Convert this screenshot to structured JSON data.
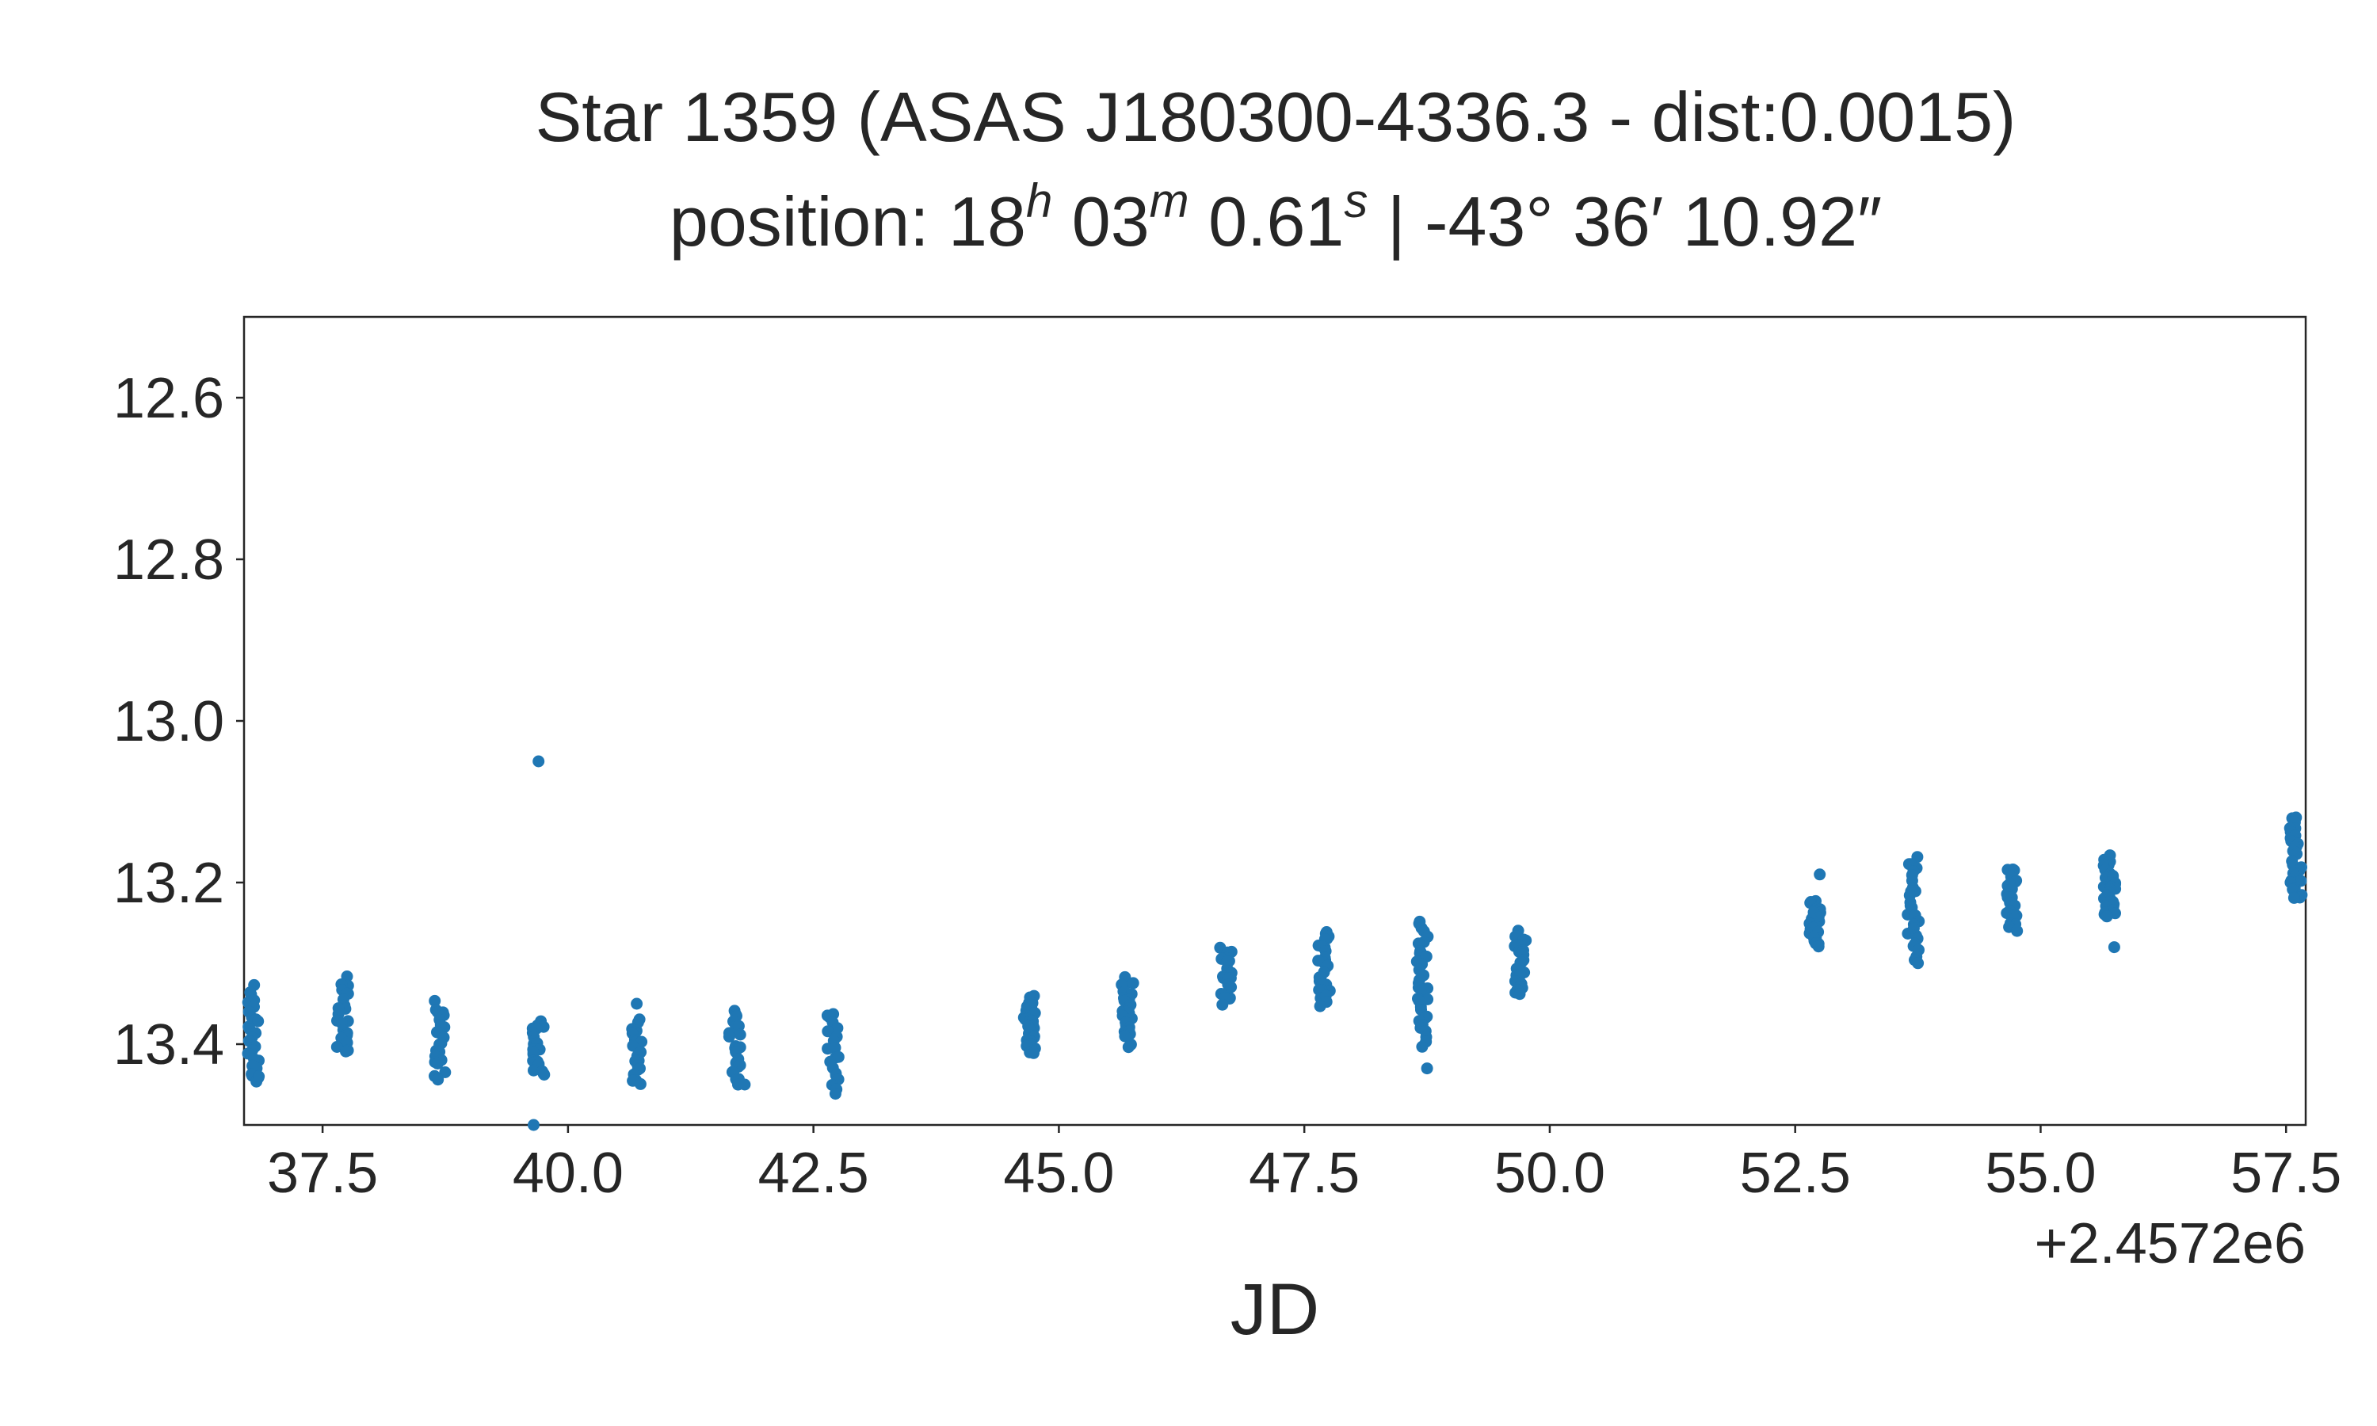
{
  "chart_data": {
    "type": "scatter",
    "title": "Star 1359 (ASAS J180300-4336.3 - dist:0.0015)",
    "subtitle": {
      "prefix": "position: ",
      "ra_h": "18",
      "h_sup": "h",
      "ra_m": " 03",
      "m_sup": "m",
      "ra_s": " 0.61",
      "s_sup": "s",
      "dec": " | -43° 36′ 10.92″"
    },
    "xlabel": "JD",
    "ylabel": "",
    "x_offset_label": "+2.4572e6",
    "xlim": [
      36.7,
      57.7
    ],
    "ylim": [
      12.5,
      13.5
    ],
    "y_inverted": false,
    "grid": false,
    "marker_color": "#1f77b4",
    "x_ticks": [
      37.5,
      40.0,
      42.5,
      45.0,
      47.5,
      50.0,
      52.5,
      55.0,
      57.5
    ],
    "x_tick_labels": [
      "37.5",
      "40.0",
      "42.5",
      "45.0",
      "47.5",
      "50.0",
      "52.5",
      "55.0",
      "57.5"
    ],
    "y_ticks": [
      12.6,
      12.8,
      13.0,
      13.2,
      13.4
    ],
    "y_tick_labels": [
      "12.6",
      "12.8",
      "13.0",
      "13.2",
      "13.4"
    ],
    "clusters": [
      {
        "x": 36.8,
        "y_min": 13.33,
        "y_max": 13.45,
        "n": 26
      },
      {
        "x": 37.7,
        "y_min": 13.32,
        "y_max": 13.41,
        "n": 22
      },
      {
        "x": 38.7,
        "y_min": 13.35,
        "y_max": 13.44,
        "n": 22
      },
      {
        "x": 39.7,
        "y_min": 13.37,
        "y_max": 13.44,
        "n": 22
      },
      {
        "x": 40.7,
        "y_min": 13.37,
        "y_max": 13.45,
        "n": 22
      },
      {
        "x": 41.7,
        "y_min": 13.36,
        "y_max": 13.45,
        "n": 22
      },
      {
        "x": 42.7,
        "y_min": 13.36,
        "y_max": 13.46,
        "n": 20
      },
      {
        "x": 44.7,
        "y_min": 13.34,
        "y_max": 13.41,
        "n": 30
      },
      {
        "x": 45.7,
        "y_min": 13.32,
        "y_max": 13.4,
        "n": 28
      },
      {
        "x": 46.7,
        "y_min": 13.28,
        "y_max": 13.35,
        "n": 22
      },
      {
        "x": 47.7,
        "y_min": 13.26,
        "y_max": 13.35,
        "n": 28
      },
      {
        "x": 48.7,
        "y_min": 13.25,
        "y_max": 13.4,
        "n": 34
      },
      {
        "x": 49.7,
        "y_min": 13.26,
        "y_max": 13.34,
        "n": 26
      },
      {
        "x": 52.7,
        "y_min": 13.22,
        "y_max": 13.28,
        "n": 24
      },
      {
        "x": 53.7,
        "y_min": 13.17,
        "y_max": 13.3,
        "n": 28
      },
      {
        "x": 54.7,
        "y_min": 13.18,
        "y_max": 13.26,
        "n": 24
      },
      {
        "x": 55.7,
        "y_min": 13.17,
        "y_max": 13.24,
        "n": 36
      },
      {
        "x": 57.6,
        "y_min": 13.12,
        "y_max": 13.22,
        "n": 30
      }
    ],
    "extra_points": [
      {
        "x": 39.7,
        "y": 13.05
      },
      {
        "x": 39.65,
        "y": 13.5
      },
      {
        "x": 40.7,
        "y": 13.35
      },
      {
        "x": 48.75,
        "y": 13.43
      },
      {
        "x": 55.75,
        "y": 13.28
      },
      {
        "x": 52.75,
        "y": 13.19
      },
      {
        "x": 41.8,
        "y": 13.45
      },
      {
        "x": 36.85,
        "y": 13.44
      }
    ]
  }
}
